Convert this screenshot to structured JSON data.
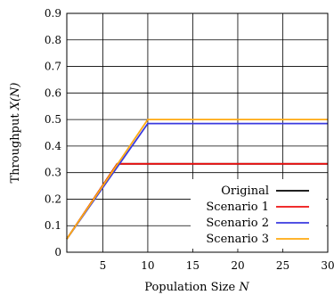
{
  "chart_data": {
    "type": "line",
    "xlabel_main": "Population Size ",
    "xlabel_var": "N",
    "ylabel_main": "Throughput ",
    "ylabel_var": "X(N)",
    "xlim": [
      1,
      30
    ],
    "ylim": [
      0,
      0.9
    ],
    "xticks": [
      5,
      10,
      15,
      20,
      25,
      30
    ],
    "yticks": [
      0,
      0.1,
      0.2,
      0.3,
      0.4,
      0.5,
      0.6,
      0.7,
      0.8,
      0.9
    ],
    "ytick_labels": [
      "0",
      "0.1",
      "0.2",
      "0.3",
      "0.4",
      "0.5",
      "0.6",
      "0.7",
      "0.8",
      "0.9"
    ],
    "grid": true,
    "legend_position": "bottom-right",
    "series": [
      {
        "name": "Original",
        "color": "#000000",
        "x": [
          1,
          6.6,
          30
        ],
        "y": [
          0.05,
          0.333,
          0.333
        ]
      },
      {
        "name": "Scenario 1",
        "color": "#ee1111",
        "x": [
          1,
          6.6,
          30
        ],
        "y": [
          0.05,
          0.333,
          0.333
        ]
      },
      {
        "name": "Scenario 2",
        "color": "#3a3adf",
        "x": [
          1,
          10,
          30
        ],
        "y": [
          0.05,
          0.485,
          0.485
        ]
      },
      {
        "name": "Scenario 3",
        "color": "#ffaa11",
        "x": [
          1,
          10,
          30
        ],
        "y": [
          0.05,
          0.5,
          0.5
        ]
      }
    ]
  }
}
